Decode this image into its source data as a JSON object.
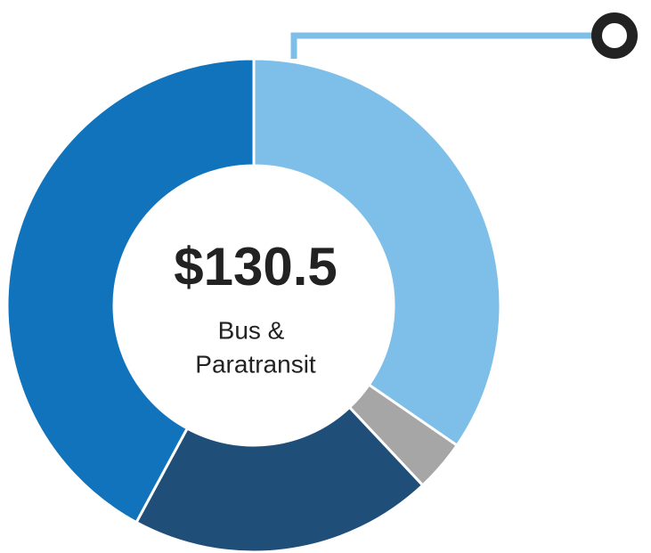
{
  "chart_data": {
    "type": "donut",
    "center_value": "$130.5",
    "center_text": [
      "Bus &",
      "Paratransit"
    ],
    "categories": [
      null,
      null,
      null,
      null
    ],
    "values": [
      34.6,
      3.4,
      19.9,
      42.1
    ],
    "colors": [
      "#7dbfe9",
      "#a6a6a6",
      "#1f4e79",
      "#1073bb"
    ]
  }
}
